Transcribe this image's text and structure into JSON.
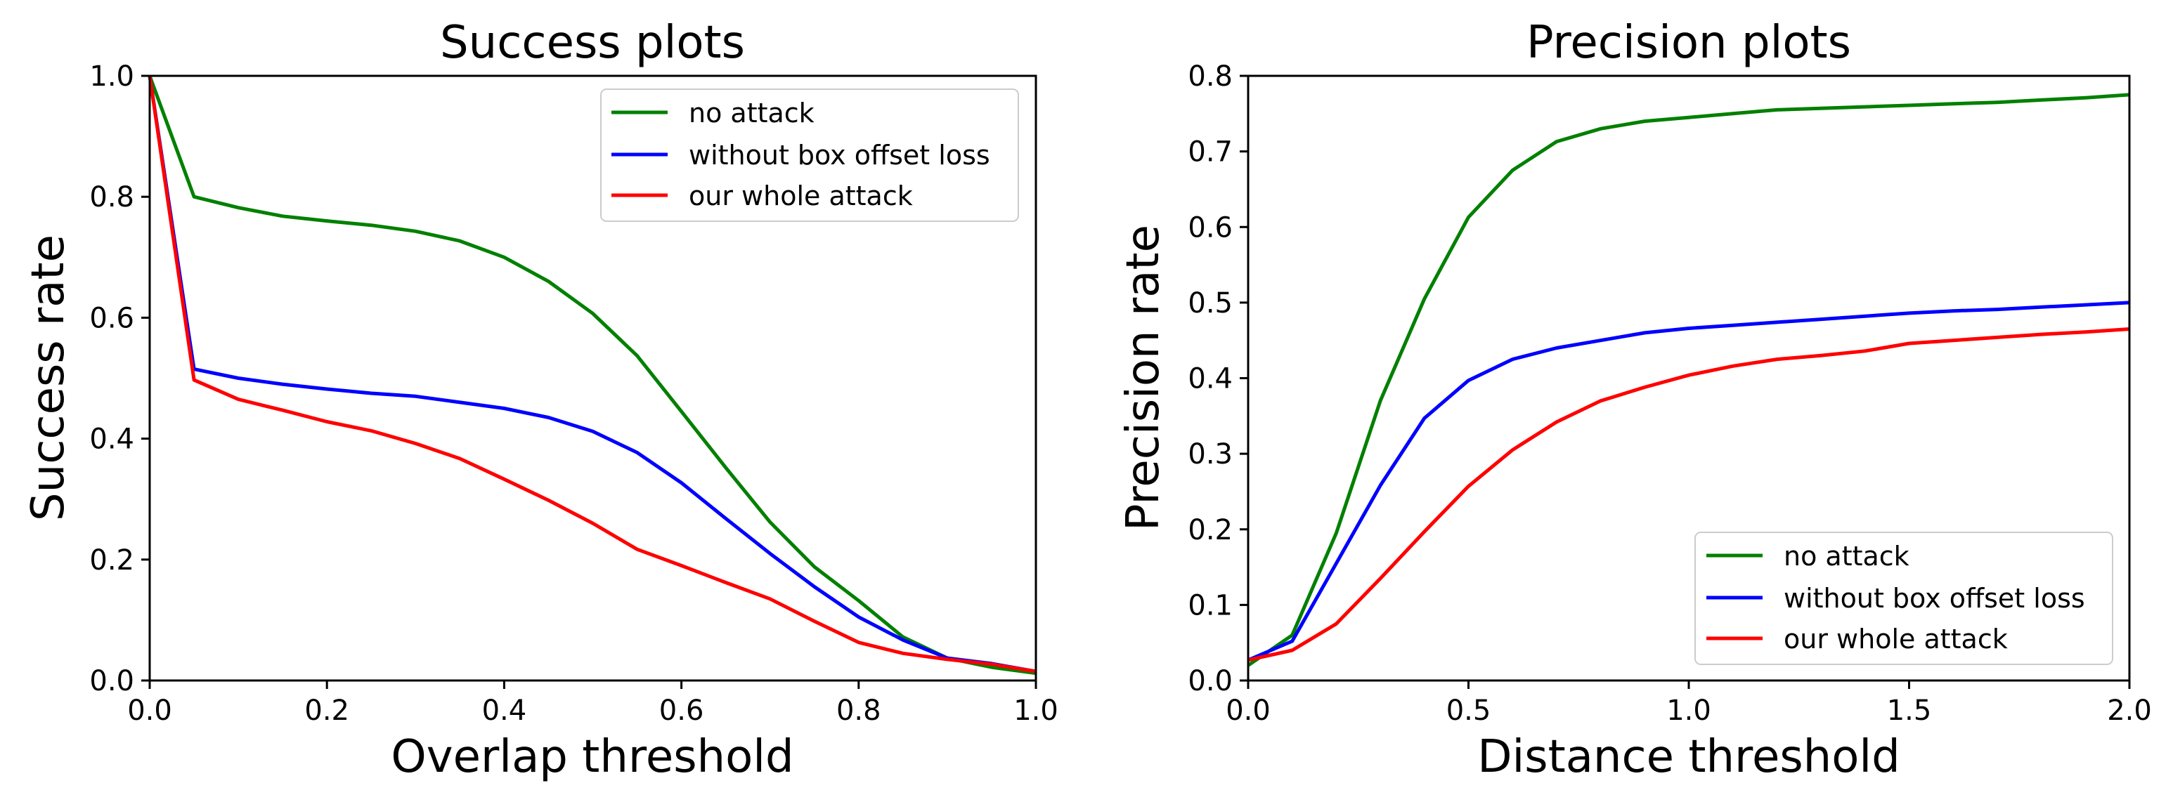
{
  "chart_data": [
    {
      "type": "line",
      "title": "Success plots",
      "xlabel": "Overlap threshold",
      "ylabel": "Success rate",
      "xlim": [
        0,
        1
      ],
      "ylim": [
        0,
        1
      ],
      "xticks": [
        "0.0",
        "0.2",
        "0.4",
        "0.6",
        "0.8",
        "1.0"
      ],
      "yticks": [
        "0.0",
        "0.2",
        "0.4",
        "0.6",
        "0.8",
        "1.0"
      ],
      "grid": false,
      "legend_position": "top-right",
      "x": [
        0.0,
        0.05,
        0.1,
        0.15,
        0.2,
        0.25,
        0.3,
        0.35,
        0.4,
        0.45,
        0.5,
        0.55,
        0.6,
        0.65,
        0.7,
        0.75,
        0.8,
        0.85,
        0.9,
        0.95,
        1.0
      ],
      "series": [
        {
          "name": "no attack",
          "color": "#008000",
          "values": [
            1.0,
            0.8,
            0.782,
            0.768,
            0.76,
            0.753,
            0.743,
            0.727,
            0.7,
            0.66,
            0.607,
            0.537,
            0.445,
            0.352,
            0.262,
            0.188,
            0.132,
            0.072,
            0.037,
            0.022,
            0.012
          ]
        },
        {
          "name": "without box offset loss",
          "color": "#0000ff",
          "values": [
            1.0,
            0.515,
            0.5,
            0.49,
            0.482,
            0.475,
            0.47,
            0.46,
            0.45,
            0.435,
            0.412,
            0.377,
            0.327,
            0.268,
            0.21,
            0.155,
            0.105,
            0.067,
            0.037,
            0.028,
            0.015
          ]
        },
        {
          "name": "our whole attack",
          "color": "#ff0000",
          "values": [
            1.0,
            0.497,
            0.465,
            0.447,
            0.428,
            0.413,
            0.392,
            0.367,
            0.333,
            0.298,
            0.26,
            0.217,
            0.19,
            0.162,
            0.135,
            0.098,
            0.063,
            0.045,
            0.035,
            0.027,
            0.015
          ]
        }
      ]
    },
    {
      "type": "line",
      "title": "Precision plots",
      "xlabel": "Distance threshold",
      "ylabel": "Precision rate",
      "xlim": [
        0,
        2
      ],
      "ylim": [
        0,
        0.8
      ],
      "xticks": [
        "0.0",
        "0.5",
        "1.0",
        "1.5",
        "2.0"
      ],
      "yticks": [
        "0.0",
        "0.1",
        "0.2",
        "0.3",
        "0.4",
        "0.5",
        "0.6",
        "0.7",
        "0.8"
      ],
      "grid": false,
      "legend_position": "bottom-right",
      "x": [
        0.0,
        0.1,
        0.2,
        0.3,
        0.4,
        0.5,
        0.6,
        0.7,
        0.8,
        0.9,
        1.0,
        1.1,
        1.2,
        1.3,
        1.4,
        1.5,
        1.6,
        1.7,
        1.8,
        1.9,
        2.0
      ],
      "series": [
        {
          "name": "no attack",
          "color": "#008000",
          "values": [
            0.02,
            0.06,
            0.195,
            0.37,
            0.505,
            0.613,
            0.675,
            0.713,
            0.73,
            0.74,
            0.745,
            0.75,
            0.755,
            0.757,
            0.759,
            0.761,
            0.763,
            0.765,
            0.768,
            0.771,
            0.775
          ]
        },
        {
          "name": "without box offset loss",
          "color": "#0000ff",
          "values": [
            0.027,
            0.052,
            0.155,
            0.258,
            0.347,
            0.397,
            0.425,
            0.44,
            0.45,
            0.46,
            0.466,
            0.47,
            0.474,
            0.478,
            0.482,
            0.486,
            0.489,
            0.491,
            0.494,
            0.497,
            0.5
          ]
        },
        {
          "name": "our whole attack",
          "color": "#ff0000",
          "values": [
            0.027,
            0.04,
            0.075,
            0.135,
            0.197,
            0.257,
            0.305,
            0.342,
            0.37,
            0.388,
            0.404,
            0.416,
            0.425,
            0.43,
            0.436,
            0.446,
            0.45,
            0.454,
            0.458,
            0.461,
            0.465
          ]
        }
      ]
    }
  ]
}
